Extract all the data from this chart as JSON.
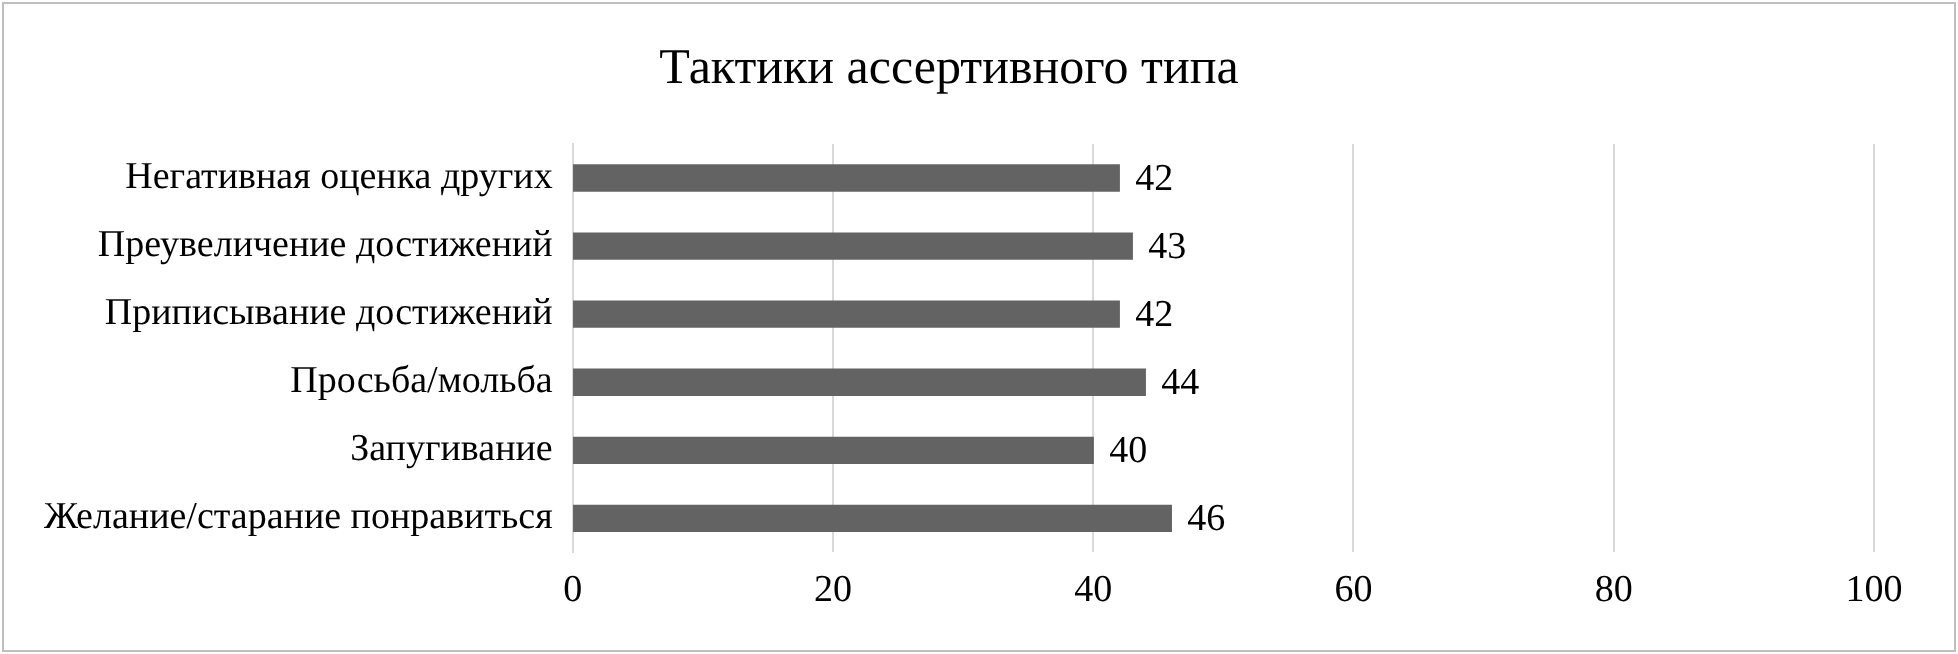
{
  "chart_data": {
    "type": "bar",
    "orientation": "horizontal",
    "title": "Тактики ассертивного типа",
    "categories": [
      "Негативная оценка других",
      "Преувеличение достижений",
      "Приписывание достижений",
      "Просьба/мольба",
      "Запугивание",
      "Желание/старание понравиться"
    ],
    "values": [
      42,
      43,
      42,
      44,
      40,
      46
    ],
    "color": "#636363",
    "xlim": [
      0,
      100
    ],
    "xticks": [
      0,
      20,
      40,
      60,
      80,
      100
    ],
    "grid": "x",
    "data_labels": true,
    "legend": false
  }
}
